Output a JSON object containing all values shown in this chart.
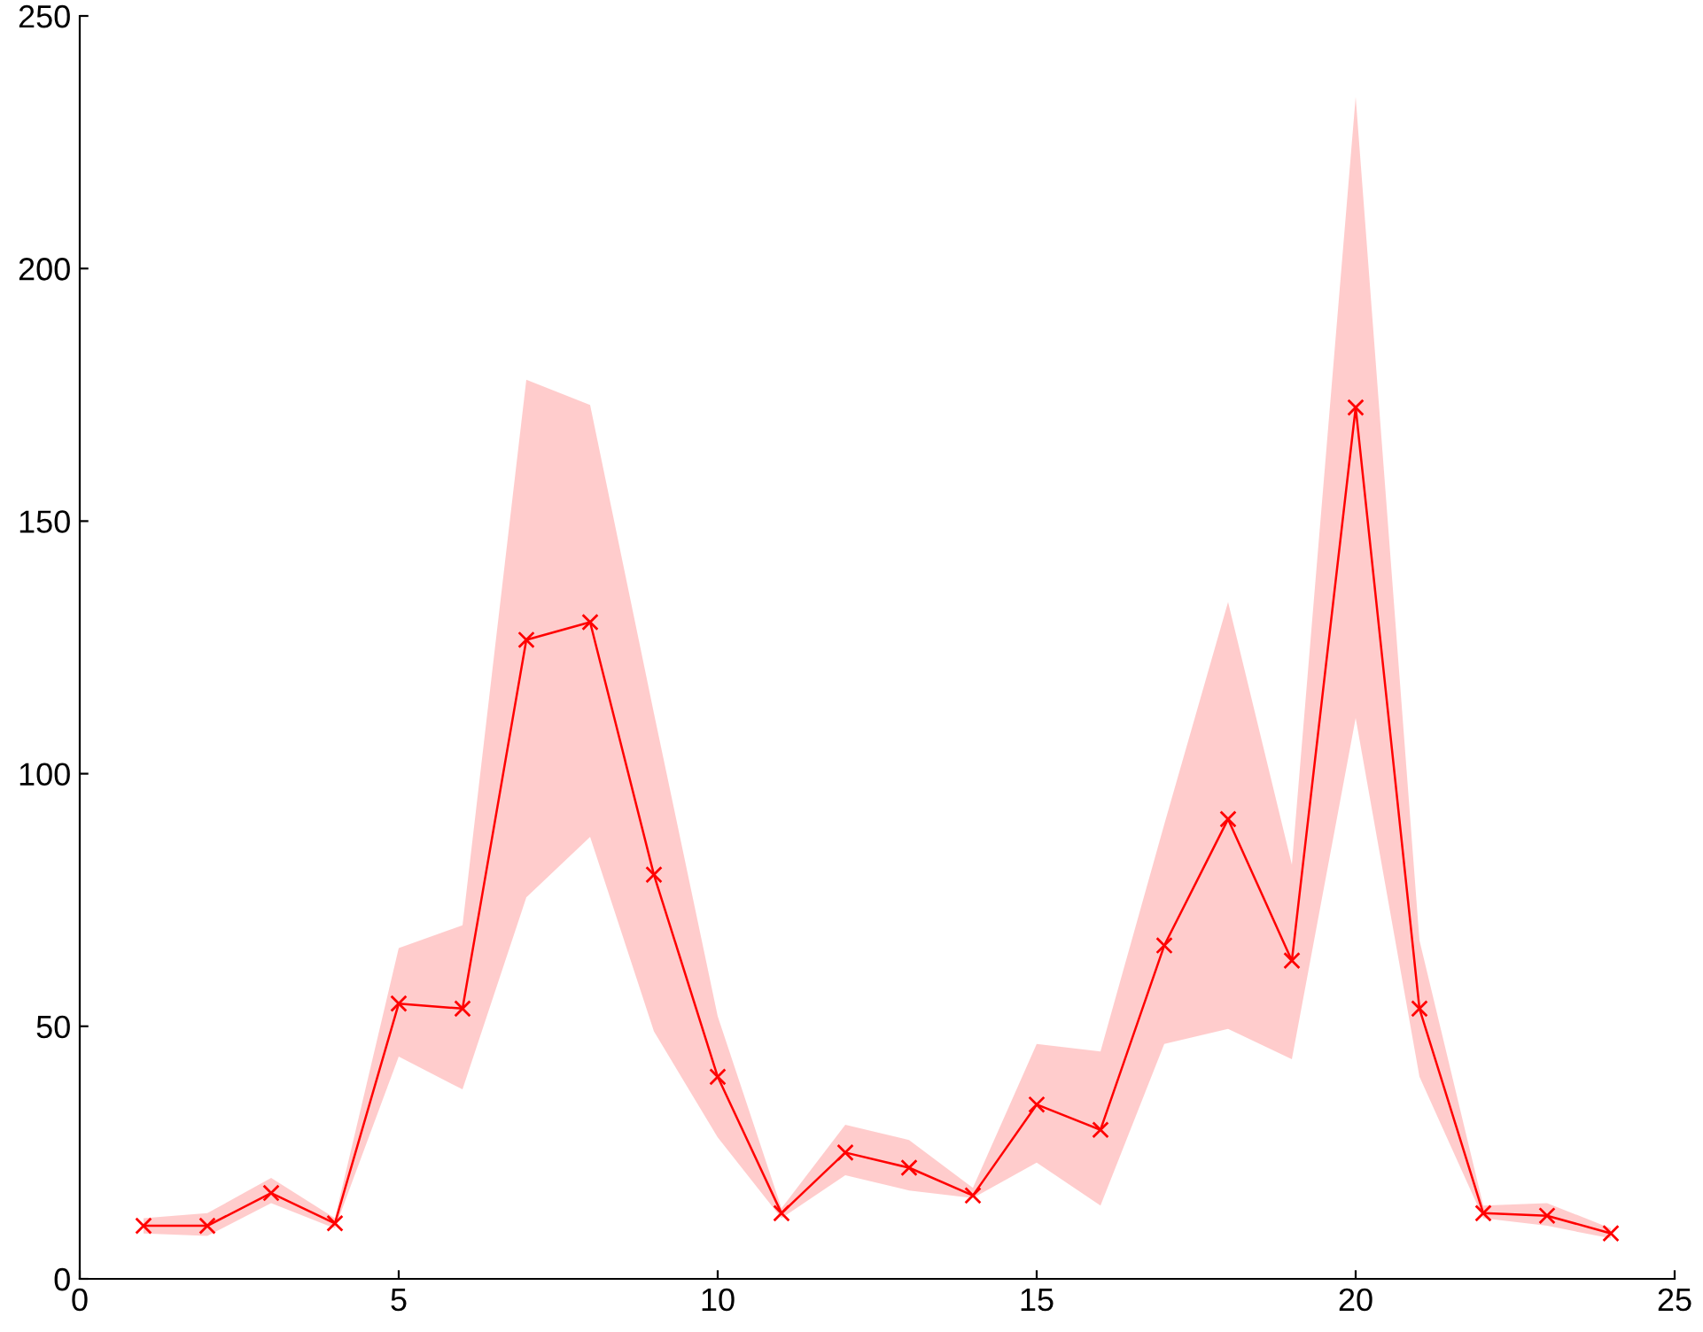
{
  "chart_data": {
    "type": "line",
    "x": [
      1,
      2,
      3,
      4,
      5,
      6,
      7,
      8,
      9,
      10,
      11,
      12,
      13,
      14,
      15,
      16,
      17,
      18,
      19,
      20,
      21,
      22,
      23,
      24
    ],
    "series": [
      {
        "color": "#ff0000",
        "values": [
          10.5,
          10.5,
          17,
          11,
          54.5,
          53.5,
          126.5,
          130,
          80,
          40,
          13,
          25,
          22,
          16.5,
          34.5,
          29.5,
          66,
          91,
          63,
          172.5,
          53.5,
          13,
          12.5,
          9
        ],
        "lower": [
          9,
          8.5,
          15,
          10,
          44,
          37.5,
          75.5,
          87.5,
          49,
          28,
          12,
          20.5,
          17.5,
          16,
          23,
          14.5,
          46.5,
          49.5,
          43.5,
          111,
          40,
          12,
          10.5,
          8
        ],
        "upper": [
          12,
          13,
          20,
          12,
          65.5,
          70,
          178,
          173,
          112,
          52,
          14,
          30.5,
          27.5,
          18,
          46.5,
          45,
          90,
          134,
          82,
          234,
          67,
          14.5,
          15,
          10
        ]
      }
    ],
    "xlim": [
      0,
      25
    ],
    "xticks": [
      0,
      5,
      10,
      15,
      20,
      25
    ],
    "ylim": [
      0,
      250
    ],
    "yticks": [
      0,
      50,
      100,
      150,
      200,
      250
    ],
    "grid": false,
    "marker": "cross",
    "line_style": "solid"
  }
}
